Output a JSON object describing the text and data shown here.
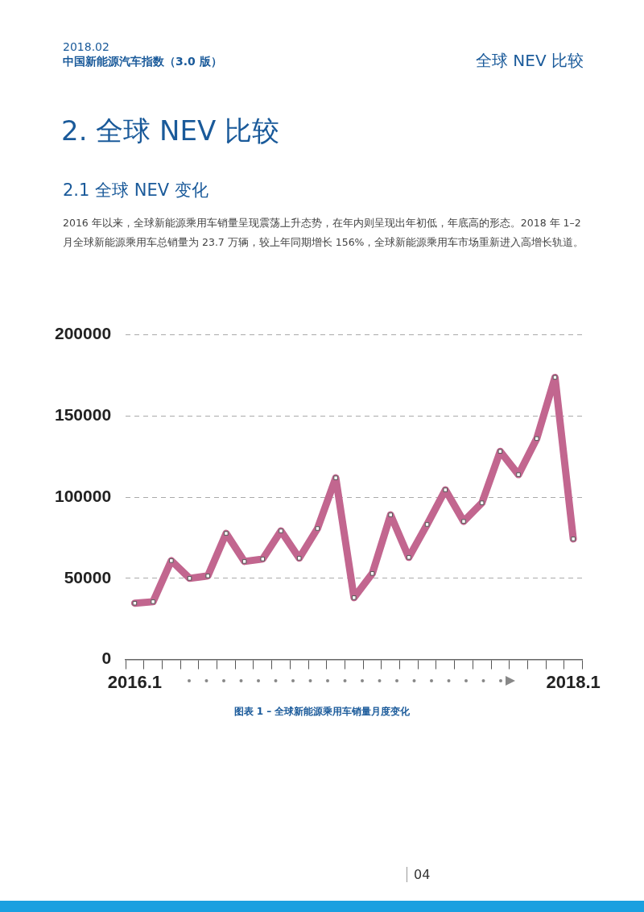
{
  "chart_data": {
    "type": "line",
    "title": "图表 1 – 全球新能源乘用车销量月度变化",
    "annotations": [
      "2018.02",
      "中国新能源汽车指数（3.0 版）",
      "全球 NEV 比较",
      "2. 全球 NEV 比较",
      "2.1 全球 NEV 变化",
      "2016 年以来，全球新能源乘用车销量呈现震荡上升态势，在年内则呈现出年初低，年底高的形态。2018 年 1–2 月全球新能源乘用车总销量为 23.7 万辆，较上年同期增长 156%，全球新能源乘用车市场重新进入高增长轨道。",
      "04"
    ],
    "categories": [
      "2016.1",
      null,
      null,
      null,
      null,
      null,
      null,
      null,
      null,
      null,
      null,
      null,
      null,
      null,
      null,
      null,
      null,
      null,
      null,
      null,
      null,
      null,
      null,
      null,
      "2018.1"
    ],
    "series": [
      {
        "values": [
          34700,
          35600,
          60900,
          50000,
          51500,
          77700,
          60400,
          61900,
          79200,
          62400,
          80700,
          111900,
          38100,
          53000,
          89100,
          62900,
          83200,
          104500,
          85100,
          96500,
          128200,
          113900,
          136100,
          173800,
          74300
        ],
        "color": "#c2668f"
      }
    ],
    "ylim": [
      0,
      200000
    ],
    "yticks": [
      0,
      50000,
      100000,
      150000,
      200000
    ],
    "grid": "y",
    "legend": false,
    "marker": "square",
    "line_style": "solid"
  }
}
